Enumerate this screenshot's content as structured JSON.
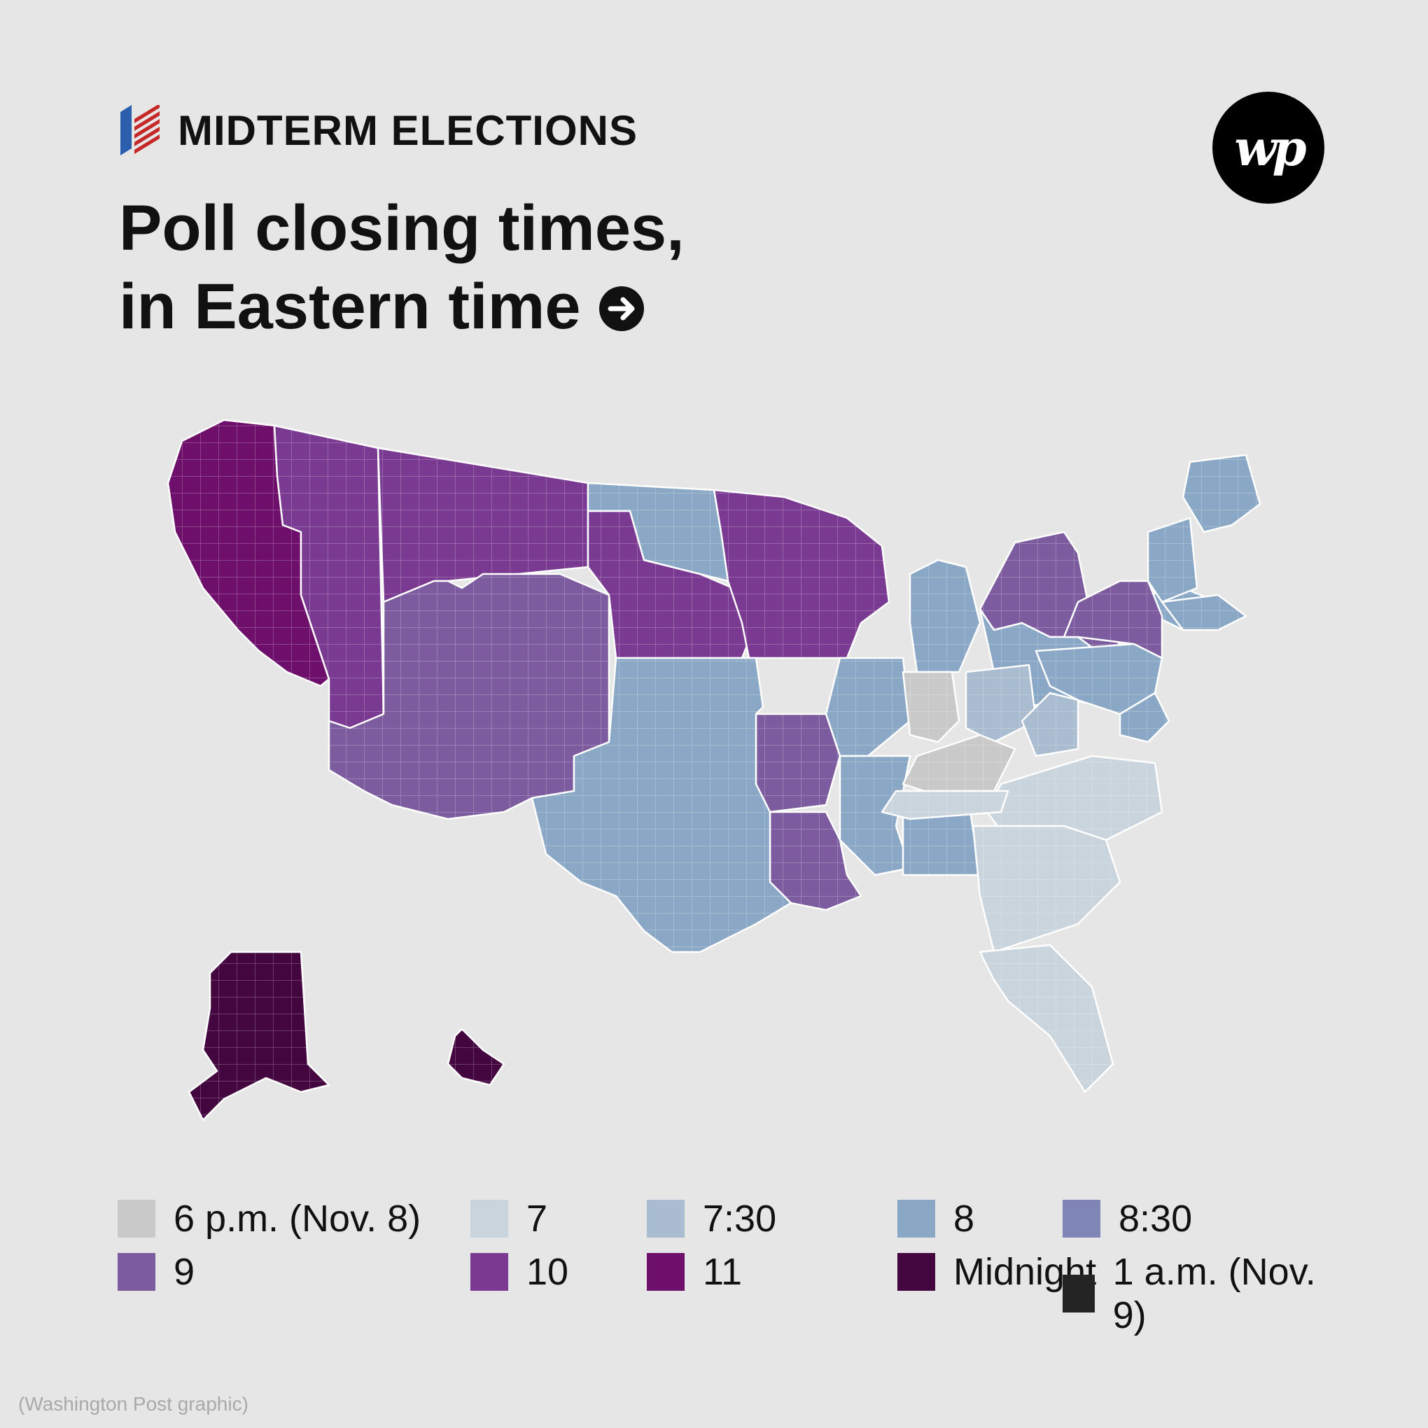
{
  "header": {
    "kicker": "MIDTERM ELECTIONS",
    "title_line1": "Poll closing times,",
    "title_line2": "in Eastern time",
    "arrow_icon": "arrow-right-circle-icon",
    "logo_text": "wp"
  },
  "legend": [
    {
      "label": "6 p.m. (Nov. 8)",
      "color": "#c9c9c9"
    },
    {
      "label": "7",
      "color": "#c9d4dc"
    },
    {
      "label": "7:30",
      "color": "#a9bcd0"
    },
    {
      "label": "8",
      "color": "#8aa8c6"
    },
    {
      "label": "8:30",
      "color": "#7f86b5"
    },
    {
      "label": "9",
      "color": "#7c5c9e"
    },
    {
      "label": "10",
      "color": "#7a3a92"
    },
    {
      "label": "11",
      "color": "#6e0f6c"
    },
    {
      "label": "Midnight",
      "color": "#43063f"
    },
    {
      "label": "1 a.m. (Nov. 9)",
      "color": "#242424"
    }
  ],
  "map": {
    "regions": [
      {
        "name": "pacific",
        "time": "11",
        "color": "#6e0f6c"
      },
      {
        "name": "mountain-west",
        "time": "10",
        "color": "#7a3a92"
      },
      {
        "name": "mountain-southwest",
        "time": "9",
        "color": "#7c5c9e"
      },
      {
        "name": "north-central",
        "time": "10",
        "color": "#7a3a92"
      },
      {
        "name": "dakotas-plains",
        "time": "8",
        "color": "#8aa8c6"
      },
      {
        "name": "upper-midwest",
        "time": "10",
        "color": "#7a3a92"
      },
      {
        "name": "south-central",
        "time": "8",
        "color": "#8aa8c6"
      },
      {
        "name": "arkansas-louisiana",
        "time": "9",
        "color": "#7c5c9e"
      },
      {
        "name": "great-lakes",
        "time": "8",
        "color": "#8aa8c6"
      },
      {
        "name": "ohio-valley",
        "time": "7:30",
        "color": "#a9bcd0"
      },
      {
        "name": "indiana-kentucky",
        "time": "6 p.m. (Nov. 8)",
        "color": "#c9c9c9"
      },
      {
        "name": "southeast",
        "time": "7",
        "color": "#c9d4dc"
      },
      {
        "name": "mid-atlantic",
        "time": "8",
        "color": "#8aa8c6"
      },
      {
        "name": "new-york",
        "time": "9",
        "color": "#7c5c9e"
      },
      {
        "name": "new-england",
        "time": "8",
        "color": "#8aa8c6"
      },
      {
        "name": "alaska-hawaii",
        "time": "Midnight",
        "color": "#43063f"
      }
    ]
  },
  "credit": "(Washington Post graphic)"
}
